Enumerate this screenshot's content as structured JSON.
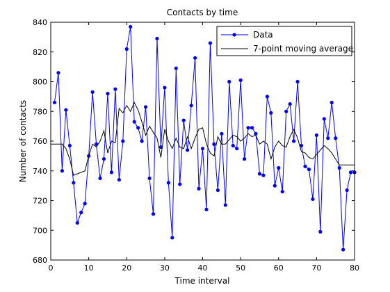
{
  "chart_data": {
    "type": "line",
    "title": "Contacts by time",
    "xlabel": "Time interval",
    "ylabel": "Number of contacts",
    "xlim": [
      0,
      80
    ],
    "ylim": [
      680,
      840
    ],
    "xticks": [
      0,
      10,
      20,
      30,
      40,
      50,
      60,
      70,
      80
    ],
    "yticks": [
      680,
      700,
      720,
      740,
      760,
      780,
      800,
      820,
      840
    ],
    "grid": false,
    "legend_position": "top-right",
    "series": [
      {
        "name": "Data",
        "color": "#0000ff",
        "marker": "dot",
        "x": [
          1,
          2,
          3,
          4,
          5,
          6,
          7,
          8,
          9,
          10,
          11,
          12,
          13,
          14,
          15,
          16,
          17,
          18,
          19,
          20,
          21,
          22,
          23,
          24,
          25,
          26,
          27,
          28,
          29,
          30,
          31,
          32,
          33,
          34,
          35,
          36,
          37,
          38,
          39,
          40,
          41,
          42,
          43,
          44,
          45,
          46,
          47,
          48,
          49,
          50,
          51,
          52,
          53,
          54,
          55,
          56,
          57,
          58,
          59,
          60,
          61,
          62,
          63,
          64,
          65,
          66,
          67,
          68,
          69,
          70,
          71,
          72,
          73,
          74,
          75,
          76,
          77,
          78,
          79,
          80
        ],
        "y": [
          786,
          806,
          740,
          781,
          757,
          732,
          705,
          712,
          718,
          750,
          793,
          758,
          735,
          748,
          792,
          739,
          795,
          734,
          760,
          822,
          837,
          773,
          769,
          760,
          783,
          735,
          711,
          829,
          756,
          796,
          732,
          695,
          809,
          731,
          774,
          754,
          784,
          816,
          728,
          755,
          714,
          826,
          758,
          727,
          765,
          717,
          800,
          757,
          755,
          801,
          748,
          769,
          769,
          765,
          738,
          737,
          790,
          779,
          730,
          742,
          726,
          780,
          785,
          760,
          800,
          757,
          743,
          741,
          721,
          764,
          699,
          775,
          762,
          786,
          762,
          742,
          687,
          727,
          739,
          739
        ]
      },
      {
        "name": "7-point moving average",
        "color": "#000000",
        "marker": "none",
        "x": [
          0,
          1,
          2,
          3,
          4,
          5,
          6,
          7,
          8,
          9,
          10,
          11,
          12,
          13,
          14,
          15,
          16,
          17,
          18,
          19,
          20,
          21,
          22,
          23,
          24,
          25,
          26,
          27,
          28,
          29,
          30,
          31,
          32,
          33,
          34,
          35,
          36,
          37,
          38,
          39,
          40,
          41,
          42,
          43,
          44,
          45,
          46,
          47,
          48,
          49,
          50,
          51,
          52,
          53,
          54,
          55,
          56,
          57,
          58,
          59,
          60,
          61,
          62,
          63,
          64,
          65,
          66,
          67,
          68,
          69,
          70,
          71,
          72,
          73,
          74,
          75,
          76,
          77,
          78,
          79,
          80
        ],
        "y": [
          758,
          758,
          758,
          758,
          755,
          748,
          737,
          738,
          739,
          740,
          750,
          758,
          756,
          760,
          767,
          752,
          760,
          759,
          782,
          779,
          784,
          780,
          786,
          781,
          773,
          764,
          770,
          766,
          762,
          749,
          768,
          760,
          755,
          762,
          756,
          755,
          763,
          755,
          762,
          768,
          769,
          758,
          752,
          750,
          763,
          758,
          758,
          761,
          764,
          763,
          760,
          762,
          765,
          763,
          764,
          758,
          760,
          758,
          748,
          756,
          760,
          757,
          756,
          763,
          768,
          762,
          753,
          752,
          749,
          748,
          751,
          754,
          757,
          755,
          752,
          748,
          744,
          744,
          744,
          744,
          744
        ]
      }
    ]
  }
}
